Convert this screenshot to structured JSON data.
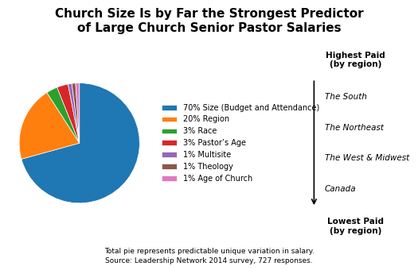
{
  "chart_data": {
    "type": "pie",
    "title": "Church Size Is by Far the Strongest Predictor\nof Large Church Senior Pastor Salaries",
    "categories": [
      "70% Size (Budget and Attendance)",
      "20% Region",
      "3% Race",
      "3% Pastor’s Age",
      "1% Multisite",
      "1% Theology",
      "1% Age of Church"
    ],
    "values": [
      70,
      20,
      3,
      3,
      1,
      1,
      1
    ],
    "legend": "center left",
    "annotations": [
      "Highest Paid\n(by region)",
      "The South",
      "The Northeast",
      "The West & Midwest",
      "Canada",
      "Lowest Paid\n(by region)"
    ],
    "footnote": [
      "Total pie represents predictable unique variation in salary.",
      "Source: Leadership Network 2014 survey, 727 responses."
    ]
  }
}
